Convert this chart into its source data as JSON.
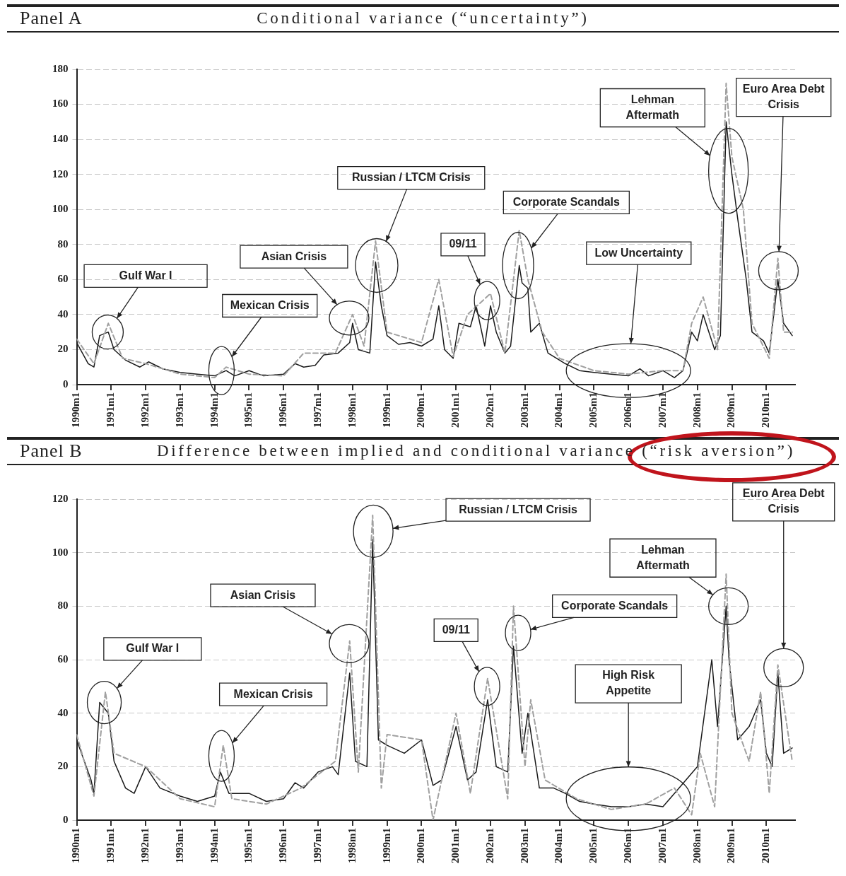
{
  "chart_data": [
    {
      "type": "line",
      "title": "Panel A",
      "subtitle": "Conditional variance (“uncertainty”)",
      "xlim": [
        "1990-01",
        "2010-11"
      ],
      "xticks": [
        {
          "value": "1990-01",
          "label": "1990m1"
        },
        {
          "value": "1991-01",
          "label": "1991m1"
        },
        {
          "value": "1992-01",
          "label": "1992m1"
        },
        {
          "value": "1993-01",
          "label": "1993m1"
        },
        {
          "value": "1994-01",
          "label": "1994m1"
        },
        {
          "value": "1995-01",
          "label": "1995m1"
        },
        {
          "value": "1996-01",
          "label": "1996m1"
        },
        {
          "value": "1997-01",
          "label": "1997m1"
        },
        {
          "value": "1998-01",
          "label": "1998m1"
        },
        {
          "value": "1999-01",
          "label": "1999m1"
        },
        {
          "value": "2000-01",
          "label": "2000m1"
        },
        {
          "value": "2001-01",
          "label": "2001m1"
        },
        {
          "value": "2002-01",
          "label": "2002m1"
        },
        {
          "value": "2003-01",
          "label": "2003m1"
        },
        {
          "value": "2004-01",
          "label": "2004m1"
        },
        {
          "value": "2005-01",
          "label": "2005m1"
        },
        {
          "value": "2006-01",
          "label": "2006m1"
        },
        {
          "value": "2007-01",
          "label": "2007m1"
        },
        {
          "value": "2008-01",
          "label": "2008m1"
        },
        {
          "value": "2009-01",
          "label": "2009m1"
        },
        {
          "value": "2010-01",
          "label": "2010m1"
        }
      ],
      "ylim": [
        0,
        180
      ],
      "yticks": [
        0,
        20,
        40,
        60,
        80,
        100,
        120,
        140,
        160,
        180
      ],
      "grid": "y",
      "legend": false,
      "annotations": [
        "Gulf War I",
        "Mexican Crisis",
        "Asian Crisis",
        "Russian / LTCM Crisis",
        "09/11",
        "Corporate Scandals",
        "Low Uncertainty",
        "Lehman Aftermath",
        "Euro Area Debt Crisis"
      ],
      "series": [
        {
          "color": "#a0a0a0",
          "line_style": "dashed",
          "x": [
            "1990-01",
            "1990-07",
            "1990-12",
            "1991-05",
            "1992-01",
            "1993-01",
            "1994-01",
            "1994-05",
            "1995-01",
            "1996-01",
            "1996-08",
            "1997-07",
            "1998-01",
            "1998-05",
            "1998-09",
            "1999-01",
            "2000-01",
            "2000-07",
            "2000-12",
            "2001-05",
            "2002-01",
            "2002-06",
            "2002-11",
            "2003-02",
            "2003-07",
            "2004-01",
            "2005-01",
            "2006-01",
            "2007-01",
            "2007-08",
            "2007-11",
            "2008-03",
            "2008-08",
            "2008-11",
            "2009-01",
            "2009-05",
            "2009-08",
            "2010-02",
            "2010-05",
            "2010-07",
            "2010-10"
          ],
          "values": [
            26,
            12,
            35,
            15,
            12,
            6,
            4,
            10,
            6,
            5,
            18,
            18,
            40,
            22,
            82,
            30,
            24,
            60,
            16,
            40,
            52,
            18,
            88,
            60,
            30,
            15,
            8,
            6,
            8,
            8,
            35,
            50,
            20,
            172,
            130,
            100,
            35,
            15,
            72,
            30,
            30
          ]
        },
        {
          "color": "#1a1a1a",
          "line_style": "solid",
          "x": [
            "1990-01",
            "1990-05",
            "1990-07",
            "1990-09",
            "1990-12",
            "1991-02",
            "1991-06",
            "1991-11",
            "1992-02",
            "1992-07",
            "1993-01",
            "1993-07",
            "1994-01",
            "1994-05",
            "1994-08",
            "1995-01",
            "1995-06",
            "1996-01",
            "1996-05",
            "1996-08",
            "1996-12",
            "1997-03",
            "1997-08",
            "1997-12",
            "1998-01",
            "1998-03",
            "1998-07",
            "1998-09",
            "1998-11",
            "1999-01",
            "1999-05",
            "1999-09",
            "2000-01",
            "2000-05",
            "2000-07",
            "2000-09",
            "2000-12",
            "2001-02",
            "2001-06",
            "2001-08",
            "2001-11",
            "2002-01",
            "2002-03",
            "2002-06",
            "2002-08",
            "2002-11",
            "2002-12",
            "2003-02",
            "2003-03",
            "2003-06",
            "2003-09",
            "2004-03",
            "2004-08",
            "2005-01",
            "2005-07",
            "2006-01",
            "2006-05",
            "2006-08",
            "2007-01",
            "2007-05",
            "2007-08",
            "2007-11",
            "2008-01",
            "2008-03",
            "2008-07",
            "2008-09",
            "2008-11",
            "2009-01",
            "2009-03",
            "2009-06",
            "2009-08",
            "2009-12",
            "2010-02",
            "2010-05",
            "2010-07",
            "2010-10"
          ],
          "values": [
            24,
            12,
            10,
            28,
            30,
            20,
            14,
            10,
            13,
            9,
            7,
            6,
            5,
            8,
            5,
            8,
            5,
            6,
            12,
            10,
            11,
            17,
            18,
            24,
            35,
            20,
            18,
            70,
            45,
            28,
            23,
            24,
            22,
            26,
            45,
            20,
            15,
            35,
            33,
            45,
            22,
            45,
            30,
            18,
            22,
            68,
            58,
            55,
            30,
            35,
            18,
            12,
            8,
            7,
            6,
            5,
            9,
            5,
            8,
            4,
            8,
            30,
            25,
            40,
            20,
            28,
            150,
            120,
            95,
            60,
            30,
            25,
            18,
            60,
            35,
            28
          ]
        }
      ]
    },
    {
      "type": "line",
      "title": "Panel B",
      "subtitle": "Difference between implied and conditional variance (“risk aversion”)",
      "xlim": [
        "1990-01",
        "2010-11"
      ],
      "xticks": [
        {
          "value": "1990-01",
          "label": "1990m1"
        },
        {
          "value": "1991-01",
          "label": "1991m1"
        },
        {
          "value": "1992-01",
          "label": "1992m1"
        },
        {
          "value": "1993-01",
          "label": "1993m1"
        },
        {
          "value": "1994-01",
          "label": "1994m1"
        },
        {
          "value": "1995-01",
          "label": "1995m1"
        },
        {
          "value": "1996-01",
          "label": "1996m1"
        },
        {
          "value": "1997-01",
          "label": "1997m1"
        },
        {
          "value": "1998-01",
          "label": "1998m1"
        },
        {
          "value": "1999-01",
          "label": "1999m1"
        },
        {
          "value": "2000-01",
          "label": "2000m1"
        },
        {
          "value": "2001-01",
          "label": "2001m1"
        },
        {
          "value": "2002-01",
          "label": "2002m1"
        },
        {
          "value": "2003-01",
          "label": "2003m1"
        },
        {
          "value": "2004-01",
          "label": "2004m1"
        },
        {
          "value": "2005-01",
          "label": "2005m1"
        },
        {
          "value": "2006-01",
          "label": "2006m1"
        },
        {
          "value": "2007-01",
          "label": "2007m1"
        },
        {
          "value": "2008-01",
          "label": "2008m1"
        },
        {
          "value": "2009-01",
          "label": "2009m1"
        },
        {
          "value": "2010-01",
          "label": "2010m1"
        }
      ],
      "ylim": [
        0,
        120
      ],
      "yticks": [
        0,
        20,
        40,
        60,
        80,
        100,
        120
      ],
      "grid": "y",
      "legend": false,
      "annotations": [
        "Gulf War I",
        "Mexican Crisis",
        "Asian Crisis",
        "Russian / LTCM Crisis",
        "09/11",
        "Corporate Scandals",
        "High Risk Appetite",
        "Lehman Aftermath",
        "Euro Area Debt Crisis"
      ],
      "series": [
        {
          "color": "#a0a0a0",
          "line_style": "dashed",
          "x": [
            "1990-01",
            "1990-07",
            "1990-11",
            "1991-02",
            "1992-01",
            "1993-01",
            "1994-01",
            "1994-04",
            "1994-07",
            "1995-07",
            "1996-07",
            "1997-07",
            "1997-12",
            "1998-03",
            "1998-08",
            "1998-11",
            "1999-01",
            "2000-01",
            "2000-05",
            "2000-08",
            "2001-01",
            "2001-06",
            "2001-12",
            "2002-07",
            "2002-09",
            "2003-01",
            "2003-03",
            "2003-08",
            "2004-07",
            "2005-07",
            "2006-07",
            "2007-05",
            "2007-11",
            "2008-02",
            "2008-07",
            "2008-11",
            "2009-01",
            "2009-07",
            "2009-11",
            "2010-02",
            "2010-05",
            "2010-10"
          ],
          "values": [
            32,
            9,
            48,
            25,
            20,
            8,
            5,
            28,
            8,
            6,
            12,
            22,
            67,
            18,
            114,
            12,
            32,
            30,
            0,
            15,
            40,
            10,
            53,
            8,
            80,
            20,
            45,
            15,
            8,
            4,
            6,
            12,
            2,
            25,
            5,
            92,
            40,
            22,
            48,
            10,
            58,
            22
          ]
        },
        {
          "color": "#1a1a1a",
          "line_style": "solid",
          "x": [
            "1990-01",
            "1990-06",
            "1990-07",
            "1990-09",
            "1990-12",
            "1991-02",
            "1991-06",
            "1991-09",
            "1992-01",
            "1992-06",
            "1993-01",
            "1993-07",
            "1994-01",
            "1994-03",
            "1994-06",
            "1995-01",
            "1995-07",
            "1996-01",
            "1996-05",
            "1996-08",
            "1997-01",
            "1997-06",
            "1997-08",
            "1997-12",
            "1998-02",
            "1998-06",
            "1998-08",
            "1998-10",
            "1999-01",
            "1999-07",
            "2000-01",
            "2000-05",
            "2000-08",
            "2001-01",
            "2001-05",
            "2001-08",
            "2001-12",
            "2002-03",
            "2002-07",
            "2002-09",
            "2002-12",
            "2003-02",
            "2003-06",
            "2003-11",
            "2004-03",
            "2004-08",
            "2005-01",
            "2005-07",
            "2006-01",
            "2006-07",
            "2007-01",
            "2007-05",
            "2007-09",
            "2008-01",
            "2008-06",
            "2008-08",
            "2008-11",
            "2008-12",
            "2009-03",
            "2009-07",
            "2009-11",
            "2010-01",
            "2010-03",
            "2010-05",
            "2010-07",
            "2010-10"
          ],
          "values": [
            30,
            15,
            10,
            44,
            40,
            22,
            12,
            10,
            20,
            12,
            9,
            7,
            9,
            18,
            10,
            10,
            7,
            8,
            14,
            12,
            18,
            20,
            17,
            55,
            22,
            20,
            105,
            30,
            28,
            25,
            30,
            13,
            15,
            35,
            15,
            18,
            45,
            20,
            18,
            65,
            25,
            40,
            12,
            12,
            10,
            7,
            6,
            5,
            5,
            6,
            5,
            10,
            15,
            20,
            60,
            35,
            80,
            60,
            30,
            35,
            45,
            25,
            20,
            55,
            25,
            27
          ]
        }
      ]
    }
  ]
}
